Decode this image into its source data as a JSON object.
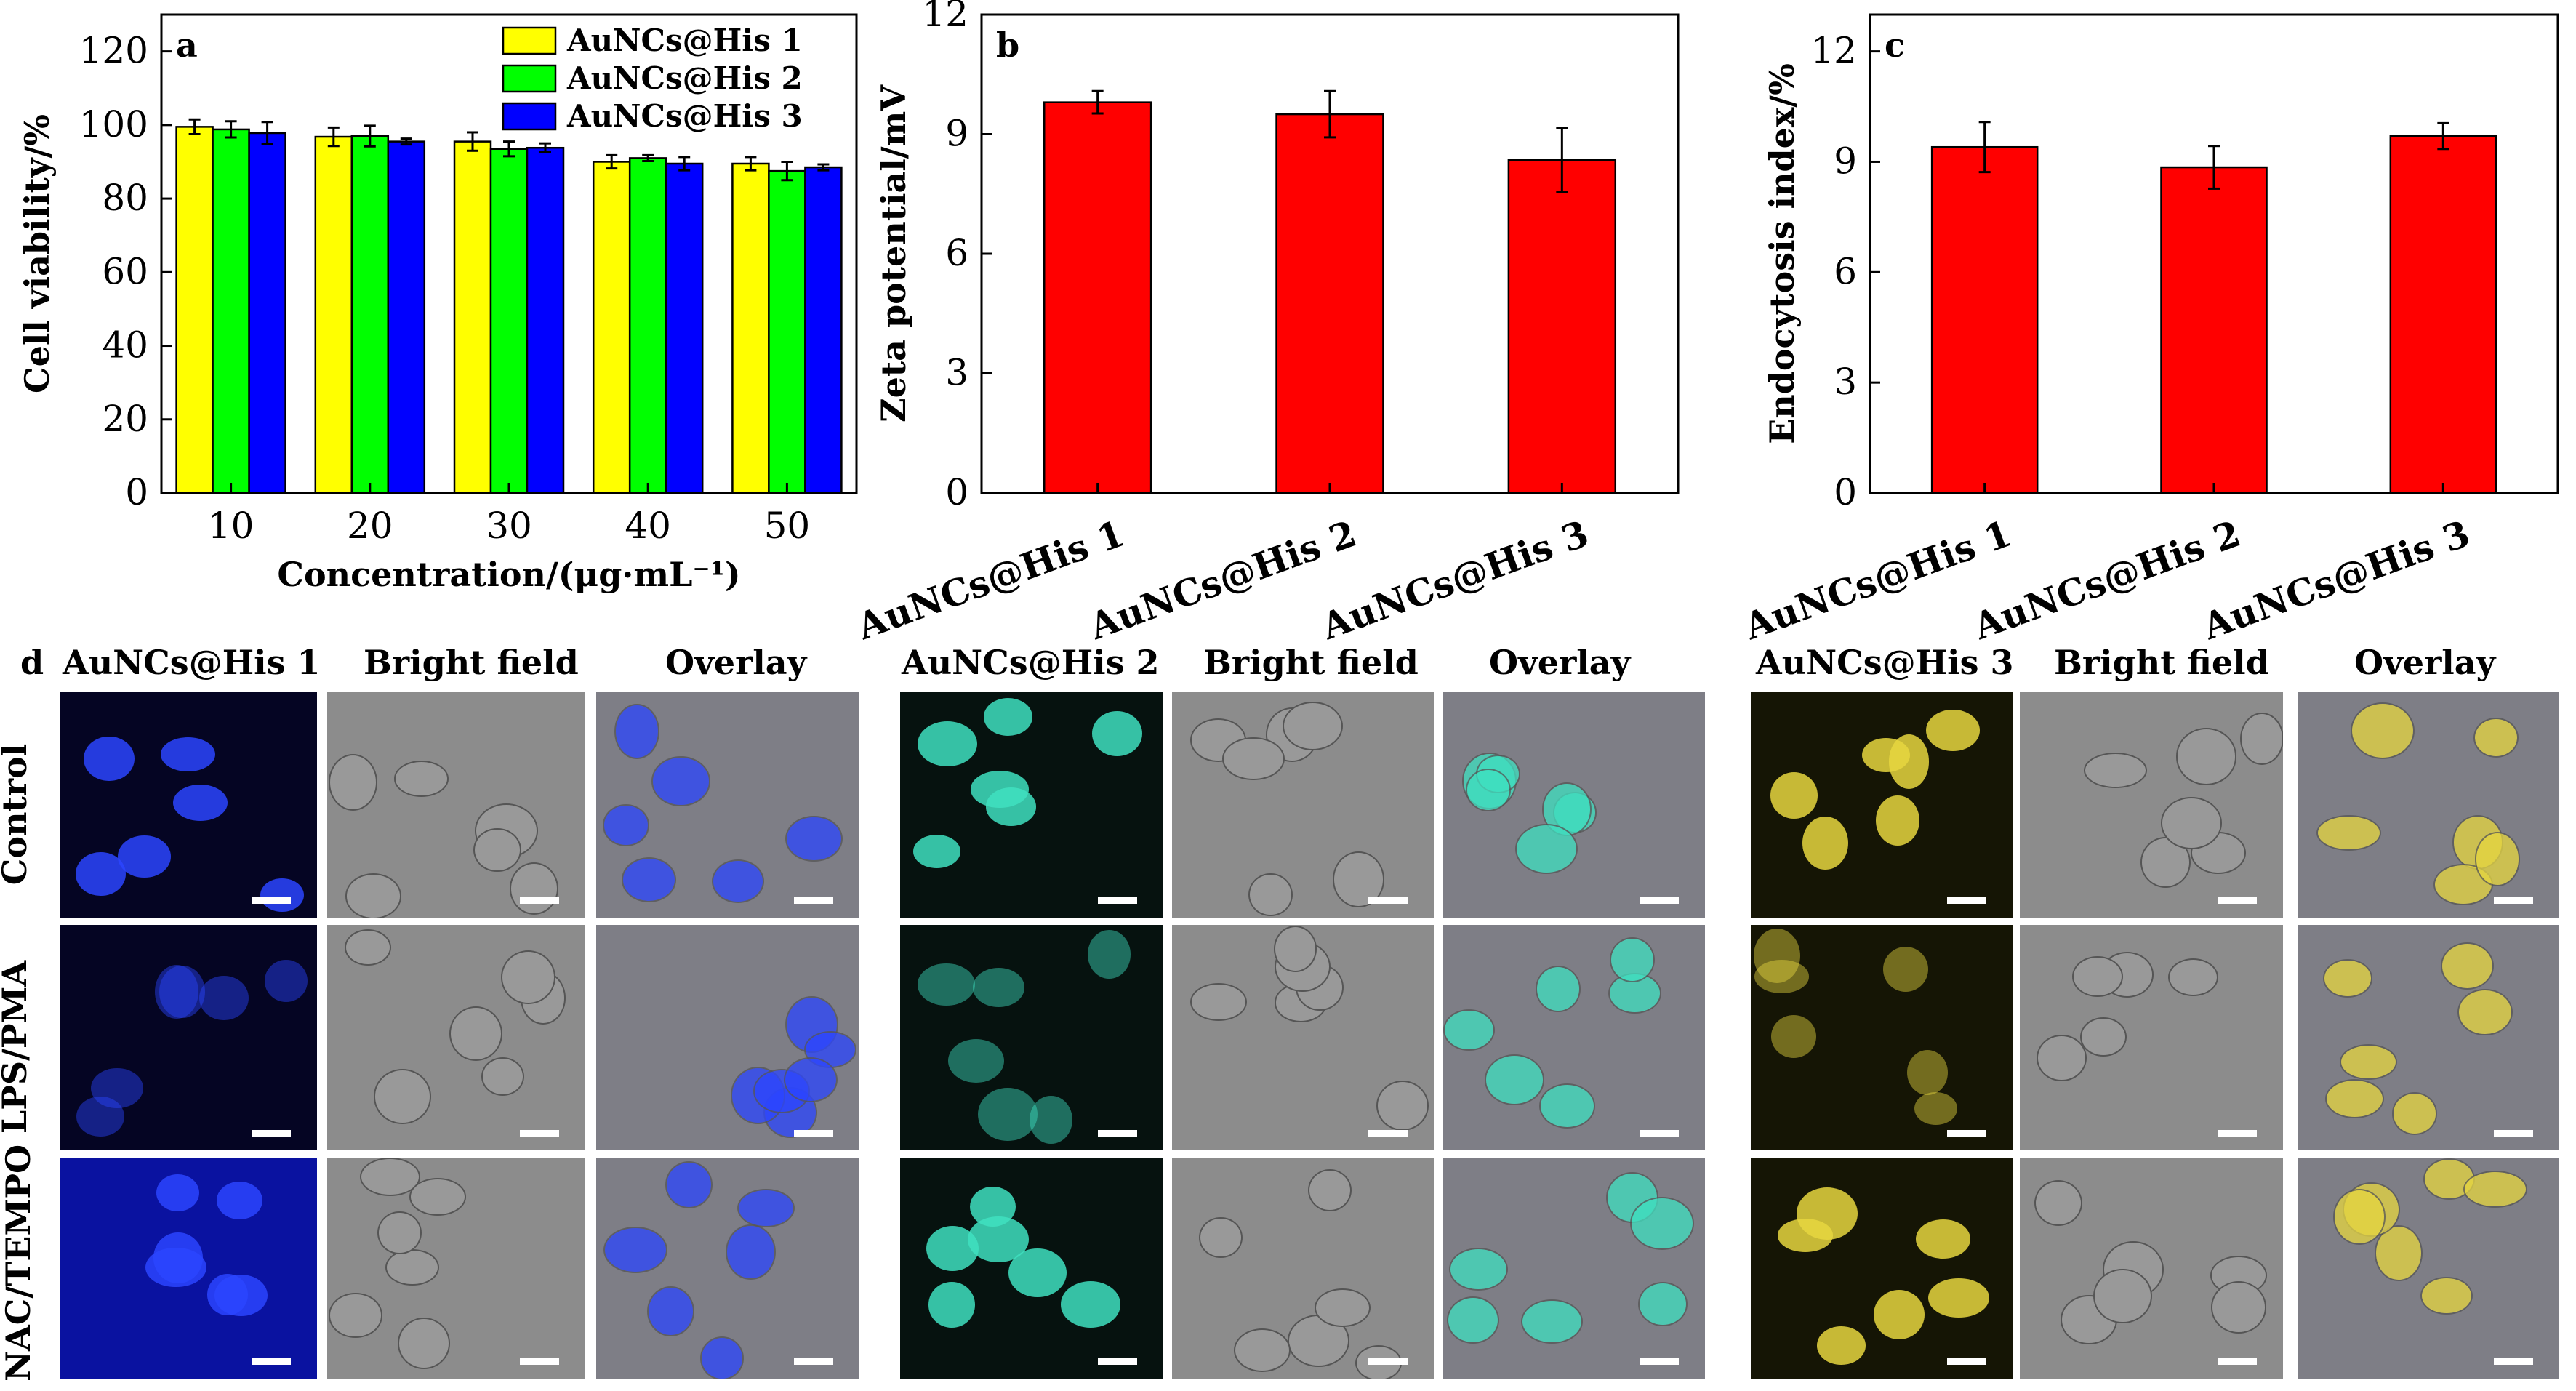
{
  "chart_data": [
    {
      "panel": "a",
      "type": "bar",
      "categories": [
        "10",
        "20",
        "30",
        "40",
        "50"
      ],
      "series": [
        {
          "name": "AuNCs@His 1",
          "color": "#ffff00",
          "values": [
            99.5,
            96.8,
            95.5,
            90.0,
            89.5
          ],
          "errors": [
            2.0,
            2.5,
            2.5,
            1.8,
            1.8
          ]
        },
        {
          "name": "AuNCs@His 2",
          "color": "#00ff00",
          "values": [
            98.8,
            97.0,
            93.5,
            91.0,
            87.5
          ],
          "errors": [
            2.2,
            2.8,
            2.0,
            0.8,
            2.5
          ]
        },
        {
          "name": "AuNCs@His 3",
          "color": "#0000ff",
          "values": [
            97.8,
            95.5,
            93.8,
            89.5,
            88.5
          ],
          "errors": [
            3.0,
            0.8,
            1.2,
            1.8,
            0.8
          ]
        }
      ],
      "xlabel": "Concentration/(μg·mL⁻¹)",
      "ylabel": "Cell viability/%",
      "ylim": [
        0,
        130
      ],
      "yticks": [
        "0",
        "20",
        "40",
        "60",
        "80",
        "100",
        "120"
      ],
      "legend": "top-right"
    },
    {
      "panel": "b",
      "type": "bar",
      "categories": [
        "AuNCs@His 1",
        "AuNCs@His 2",
        "AuNCs@His 3"
      ],
      "series": [
        {
          "color": "#ff0000",
          "values": [
            9.8,
            9.5,
            8.35
          ],
          "errors": [
            0.28,
            0.58,
            0.8
          ]
        }
      ],
      "xlabel": "",
      "ylabel": "Zeta potential/mV",
      "ylim": [
        0,
        12
      ],
      "yticks": [
        "0",
        "3",
        "6",
        "9",
        "12"
      ]
    },
    {
      "panel": "c",
      "type": "bar",
      "categories": [
        "AuNCs@His 1",
        "AuNCs@His 2",
        "AuNCs@His 3"
      ],
      "series": [
        {
          "color": "#ff0000",
          "values": [
            9.4,
            8.85,
            9.7
          ],
          "errors": [
            0.68,
            0.58,
            0.35
          ]
        }
      ],
      "xlabel": "",
      "ylabel": "Endocytosis index/%",
      "ylim": [
        0,
        13
      ],
      "yticks": [
        "0",
        "3",
        "6",
        "9",
        "12"
      ]
    }
  ],
  "panel_d": {
    "label": "d",
    "groups": [
      {
        "titles": [
          "AuNCs@His 1",
          "Bright field",
          "Overlay"
        ],
        "tint": "#2b45ff"
      },
      {
        "titles": [
          "AuNCs@His 2",
          "Bright field",
          "Overlay"
        ],
        "tint": "#3fe0c0"
      },
      {
        "titles": [
          "AuNCs@His 3",
          "Bright field",
          "Overlay"
        ],
        "tint": "#e6d640"
      }
    ],
    "rows": [
      "Control",
      "LPS/PMA",
      "NAC/TEMPO"
    ]
  }
}
